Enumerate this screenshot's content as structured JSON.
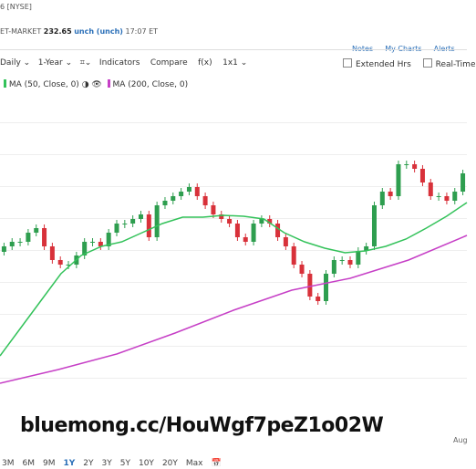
{
  "header": {
    "exchange": "6 [NYSE]",
    "quote": "ET-MARKET",
    "price": "232.65",
    "change": "unch (unch)",
    "time": "17:07 ET",
    "links": [
      "Notes",
      "My Charts",
      "Alerts"
    ]
  },
  "toolbar": {
    "left": [
      "Daily",
      "1-Year",
      "Indicators",
      "Compare",
      "f(x)",
      "1x1"
    ],
    "right": [
      "Extended Hrs",
      "Real-Time"
    ]
  },
  "chart_data": {
    "type": "candlestick",
    "open": [
      201,
      202.5,
      203.75,
      203.75,
      206.25,
      207.5,
      202.5,
      198.75,
      197.5,
      197.5,
      200,
      203.75,
      203.75,
      202.5,
      206.25,
      208.75,
      208.75,
      210,
      211.25,
      205,
      213.75,
      215,
      216.25,
      217.5,
      218.75,
      216.25,
      213.75,
      211.25,
      210,
      208.75,
      205,
      203.75,
      208.75,
      210,
      208.75,
      205,
      202.5,
      197.5,
      195,
      188.75,
      187.5,
      195,
      198.75,
      198.75,
      197.5,
      201.25,
      202.5,
      213.75,
      217.5,
      216.25,
      225,
      225,
      223.75,
      220,
      216.25,
      216.25,
      215,
      217.5
    ],
    "close": [
      202.5,
      203.75,
      203.75,
      206.25,
      207.5,
      202.5,
      198.75,
      197.5,
      197.5,
      200,
      203.75,
      203.75,
      202.5,
      206.25,
      208.75,
      208.75,
      210,
      211.25,
      205,
      213.75,
      215,
      216.25,
      217.5,
      218.75,
      216.25,
      213.75,
      211.25,
      210,
      208.75,
      205,
      203.75,
      208.75,
      210,
      208.75,
      205,
      202.5,
      197.5,
      195,
      188.75,
      187.5,
      195,
      198.75,
      198.75,
      197.5,
      201.25,
      202.5,
      213.75,
      217.5,
      216.25,
      225,
      225,
      223.75,
      220,
      216.25,
      216.25,
      215,
      217.5,
      222.5
    ],
    "up_color": "#2e9e4f",
    "down_color": "#d8313a",
    "series": [
      {
        "name": "MA (50, Close, 0)",
        "color": "#33c25a",
        "values": [
          172.5,
          180,
          187.5,
          195,
          200,
          202.5,
          203.75,
          206.25,
          208.75,
          210.5,
          210.5,
          211,
          210.75,
          210,
          206.25,
          203.75,
          202,
          200.75,
          201.25,
          202.5,
          204.5,
          207.5,
          210.75,
          214.5
        ]
      },
      {
        "name": "MA (200, Close, 0)",
        "color": "#c63fc6",
        "values": [
          165,
          168.75,
          173,
          178.75,
          185,
          190.5,
          193.75,
          198.75,
          205.5
        ]
      }
    ],
    "ylim": [
      160,
      245
    ],
    "x_label": "Aug"
  },
  "ranges": [
    "3M",
    "6M",
    "9M",
    "1Y",
    "2Y",
    "3Y",
    "5Y",
    "10Y",
    "20Y",
    "Max"
  ],
  "active_range": "1Y",
  "watermark": "bluemong.cc/HouWgf7peZ1o02W"
}
